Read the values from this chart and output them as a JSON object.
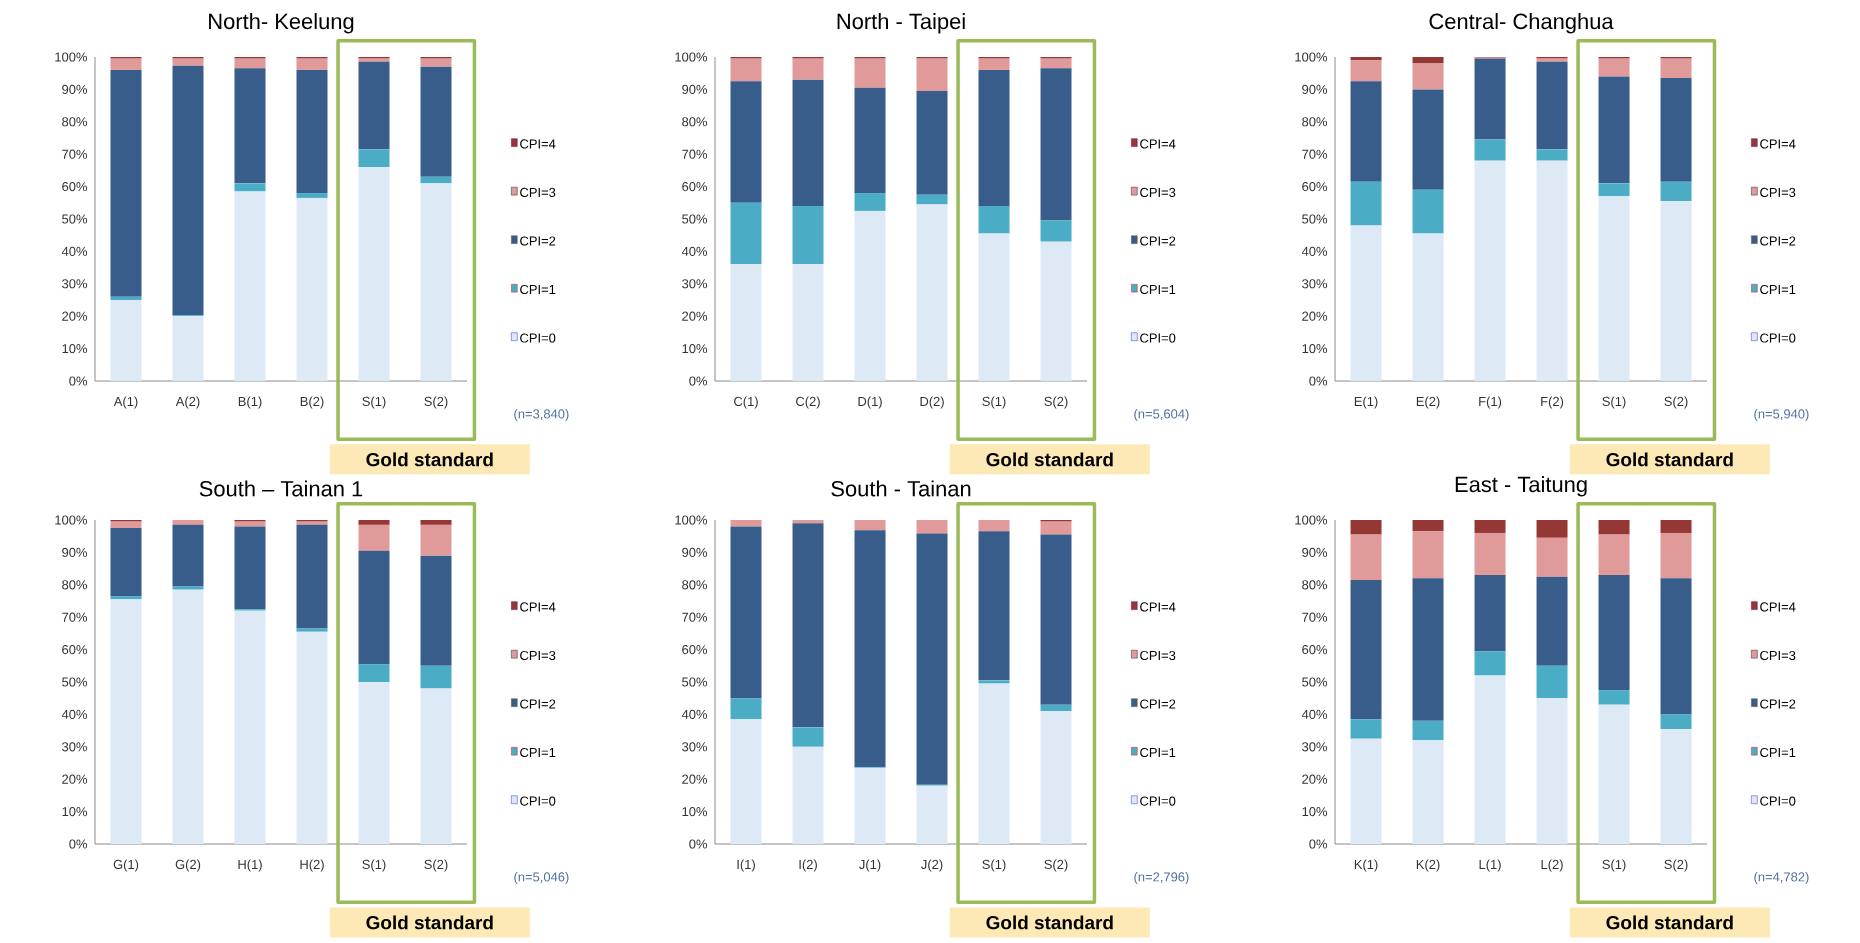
{
  "chart_data": [
    {
      "type": "bar",
      "stacked": true,
      "title": "North- Keelung",
      "categories": [
        "A(1)",
        "A(2)",
        "B(1)",
        "B(2)",
        "S(1)",
        "S(2)"
      ],
      "series": [
        {
          "name": "CPI=0",
          "color": "#dde9f5",
          "values": [
            25,
            20,
            58.5,
            56.5,
            66,
            61
          ]
        },
        {
          "name": "CPI=1",
          "color": "#4bacc6",
          "values": [
            1,
            0.3,
            2.5,
            1.5,
            5.5,
            2
          ]
        },
        {
          "name": "CPI=2",
          "color": "#385d8a",
          "values": [
            70,
            77,
            35.5,
            38,
            27,
            34
          ]
        },
        {
          "name": "CPI=3",
          "color": "#e09a9a",
          "values": [
            3.5,
            2.2,
            3,
            3.5,
            1,
            2.5
          ]
        },
        {
          "name": "CPI=4",
          "color": "#953735",
          "values": [
            0.5,
            0.5,
            0.5,
            0.5,
            0.5,
            0.5
          ]
        }
      ],
      "ylim": [
        0,
        100
      ],
      "yticks": [
        {
          "value": 0,
          "label": "0%"
        },
        {
          "value": 10,
          "label": "10%"
        },
        {
          "value": 20,
          "label": "20%"
        },
        {
          "value": 30,
          "label": "30%"
        },
        {
          "value": 40,
          "label": "40%"
        },
        {
          "value": 50,
          "label": "50%"
        },
        {
          "value": 60,
          "label": "60%"
        },
        {
          "value": 70,
          "label": "70%"
        },
        {
          "value": 80,
          "label": "80%"
        },
        {
          "value": 90,
          "label": "90%"
        },
        {
          "value": 100,
          "label": "100%"
        }
      ],
      "legend": "right",
      "annotations": [
        "(n=3,840)",
        "Gold standard"
      ]
    },
    {
      "type": "bar",
      "stacked": true,
      "title": "North - Taipei",
      "categories": [
        "C(1)",
        "C(2)",
        "D(1)",
        "D(2)",
        "S(1)",
        "S(2)"
      ],
      "series": [
        {
          "name": "CPI=0",
          "color": "#dde9f5",
          "values": [
            36,
            36,
            52.5,
            54.5,
            45.5,
            43
          ]
        },
        {
          "name": "CPI=1",
          "color": "#4bacc6",
          "values": [
            19,
            18,
            5.5,
            3,
            8.5,
            6.5
          ]
        },
        {
          "name": "CPI=2",
          "color": "#385d8a",
          "values": [
            37.5,
            39,
            32.5,
            32,
            42,
            47
          ]
        },
        {
          "name": "CPI=3",
          "color": "#e09a9a",
          "values": [
            7,
            6.5,
            9,
            10,
            3.5,
            3
          ]
        },
        {
          "name": "CPI=4",
          "color": "#953735",
          "values": [
            0.5,
            0.5,
            0.5,
            0.5,
            0.5,
            0.5
          ]
        }
      ],
      "ylim": [
        0,
        100
      ],
      "yticks": [
        {
          "value": 0,
          "label": "0%"
        },
        {
          "value": 10,
          "label": "10%"
        },
        {
          "value": 20,
          "label": "20%"
        },
        {
          "value": 30,
          "label": "30%"
        },
        {
          "value": 40,
          "label": "40%"
        },
        {
          "value": 50,
          "label": "50%"
        },
        {
          "value": 60,
          "label": "60%"
        },
        {
          "value": 70,
          "label": "70%"
        },
        {
          "value": 80,
          "label": "80%"
        },
        {
          "value": 90,
          "label": "90%"
        },
        {
          "value": 100,
          "label": "100%"
        }
      ],
      "legend": "right",
      "annotations": [
        "(n=5,604)",
        "Gold standard"
      ]
    },
    {
      "type": "bar",
      "stacked": true,
      "title": "Central- Changhua",
      "categories": [
        "E(1)",
        "E(2)",
        "F(1)",
        "F(2)",
        "S(1)",
        "S(2)"
      ],
      "series": [
        {
          "name": "CPI=0",
          "color": "#dde9f5",
          "values": [
            48,
            45.5,
            68,
            68,
            57,
            55.5
          ]
        },
        {
          "name": "CPI=1",
          "color": "#4bacc6",
          "values": [
            13.5,
            13.5,
            6.5,
            3.5,
            4,
            6
          ]
        },
        {
          "name": "CPI=2",
          "color": "#385d8a",
          "values": [
            31,
            31,
            25,
            27,
            33,
            32
          ]
        },
        {
          "name": "CPI=3",
          "color": "#e09a9a",
          "values": [
            6.5,
            8,
            0.3,
            1,
            5.5,
            6
          ]
        },
        {
          "name": "CPI=4",
          "color": "#953735",
          "values": [
            1,
            2,
            0.2,
            0.5,
            0.5,
            0.5
          ]
        }
      ],
      "ylim": [
        0,
        100
      ],
      "yticks": [
        {
          "value": 0,
          "label": "0%"
        },
        {
          "value": 10,
          "label": "10%"
        },
        {
          "value": 20,
          "label": "20%"
        },
        {
          "value": 30,
          "label": "30%"
        },
        {
          "value": 40,
          "label": "40%"
        },
        {
          "value": 50,
          "label": "50%"
        },
        {
          "value": 60,
          "label": "60%"
        },
        {
          "value": 70,
          "label": "70%"
        },
        {
          "value": 80,
          "label": "80%"
        },
        {
          "value": 90,
          "label": "90%"
        },
        {
          "value": 100,
          "label": "100%"
        }
      ],
      "legend": "right",
      "annotations": [
        "(n=5,940)",
        "Gold standard"
      ]
    },
    {
      "type": "bar",
      "stacked": true,
      "title": "South – Tainan 1",
      "categories": [
        "G(1)",
        "G(2)",
        "H(1)",
        "H(2)",
        "S(1)",
        "S(2)"
      ],
      "series": [
        {
          "name": "CPI=0",
          "color": "#dde9f5",
          "values": [
            75.5,
            78.5,
            72,
            65.5,
            50,
            48
          ]
        },
        {
          "name": "CPI=1",
          "color": "#4bacc6",
          "values": [
            1,
            1,
            0.5,
            1,
            5.5,
            7
          ]
        },
        {
          "name": "CPI=2",
          "color": "#385d8a",
          "values": [
            21,
            19,
            25.5,
            32,
            35,
            34
          ]
        },
        {
          "name": "CPI=3",
          "color": "#e09a9a",
          "values": [
            2,
            1.5,
            1.5,
            1,
            8,
            9.5
          ]
        },
        {
          "name": "CPI=4",
          "color": "#953735",
          "values": [
            0.5,
            0,
            0.5,
            0.5,
            1.5,
            1.5
          ]
        }
      ],
      "ylim": [
        0,
        100
      ],
      "yticks": [
        {
          "value": 0,
          "label": "0%"
        },
        {
          "value": 10,
          "label": "10%"
        },
        {
          "value": 20,
          "label": "20%"
        },
        {
          "value": 30,
          "label": "30%"
        },
        {
          "value": 40,
          "label": "40%"
        },
        {
          "value": 50,
          "label": "50%"
        },
        {
          "value": 60,
          "label": "60%"
        },
        {
          "value": 70,
          "label": "70%"
        },
        {
          "value": 80,
          "label": "80%"
        },
        {
          "value": 90,
          "label": "90%"
        },
        {
          "value": 100,
          "label": "100%"
        }
      ],
      "legend": "right",
      "annotations": [
        "(n=5,046)",
        "Gold standard"
      ]
    },
    {
      "type": "bar",
      "stacked": true,
      "title": "South - Tainan",
      "categories": [
        "I(1)",
        "I(2)",
        "J(1)",
        "J(2)",
        "S(1)",
        "S(2)"
      ],
      "series": [
        {
          "name": "CPI=0",
          "color": "#dde9f5",
          "values": [
            38.5,
            30,
            23.5,
            18,
            49.5,
            41
          ]
        },
        {
          "name": "CPI=1",
          "color": "#4bacc6",
          "values": [
            6.5,
            6,
            0.3,
            0.3,
            1,
            2
          ]
        },
        {
          "name": "CPI=2",
          "color": "#385d8a",
          "values": [
            53,
            63,
            73,
            77.5,
            46,
            52.5
          ]
        },
        {
          "name": "CPI=3",
          "color": "#e09a9a",
          "values": [
            2,
            1,
            3.2,
            4.2,
            3.5,
            4
          ]
        },
        {
          "name": "CPI=4",
          "color": "#953735",
          "values": [
            0,
            0,
            0,
            0,
            0,
            0.5
          ]
        }
      ],
      "ylim": [
        0,
        100
      ],
      "yticks": [
        {
          "value": 0,
          "label": "0%"
        },
        {
          "value": 10,
          "label": "10%"
        },
        {
          "value": 20,
          "label": "20%"
        },
        {
          "value": 30,
          "label": "30%"
        },
        {
          "value": 40,
          "label": "40%"
        },
        {
          "value": 50,
          "label": "50%"
        },
        {
          "value": 60,
          "label": "60%"
        },
        {
          "value": 70,
          "label": "70%"
        },
        {
          "value": 80,
          "label": "80%"
        },
        {
          "value": 90,
          "label": "90%"
        },
        {
          "value": 100,
          "label": "100%"
        }
      ],
      "legend": "right",
      "annotations": [
        "(n=2,796)",
        "Gold standard"
      ]
    },
    {
      "type": "bar",
      "stacked": true,
      "title": "East - Taitung",
      "categories": [
        "K(1)",
        "K(2)",
        "L(1)",
        "L(2)",
        "S(1)",
        "S(2)"
      ],
      "series": [
        {
          "name": "CPI=0",
          "color": "#dde9f5",
          "values": [
            32.5,
            32,
            52,
            45,
            43,
            35.5
          ]
        },
        {
          "name": "CPI=1",
          "color": "#4bacc6",
          "values": [
            6,
            6,
            7.5,
            10,
            4.5,
            4.5
          ]
        },
        {
          "name": "CPI=2",
          "color": "#385d8a",
          "values": [
            43,
            44,
            23.5,
            27.5,
            35.5,
            42
          ]
        },
        {
          "name": "CPI=3",
          "color": "#e09a9a",
          "values": [
            14,
            14.5,
            13,
            12,
            12.5,
            14
          ]
        },
        {
          "name": "CPI=4",
          "color": "#953735",
          "values": [
            4.5,
            3.5,
            4,
            5.5,
            4.5,
            4
          ]
        }
      ],
      "ylim": [
        0,
        100
      ],
      "yticks": [
        {
          "value": 0,
          "label": "0%"
        },
        {
          "value": 10,
          "label": "10%"
        },
        {
          "value": 20,
          "label": "20%"
        },
        {
          "value": 30,
          "label": "30%"
        },
        {
          "value": 40,
          "label": "40%"
        },
        {
          "value": 50,
          "label": "50%"
        },
        {
          "value": 60,
          "label": "60%"
        },
        {
          "value": 70,
          "label": "70%"
        },
        {
          "value": 80,
          "label": "80%"
        },
        {
          "value": 90,
          "label": "90%"
        },
        {
          "value": 100,
          "label": "100%"
        }
      ],
      "legend": "right",
      "annotations": [
        "(n=4,782)",
        "Gold standard"
      ]
    }
  ]
}
